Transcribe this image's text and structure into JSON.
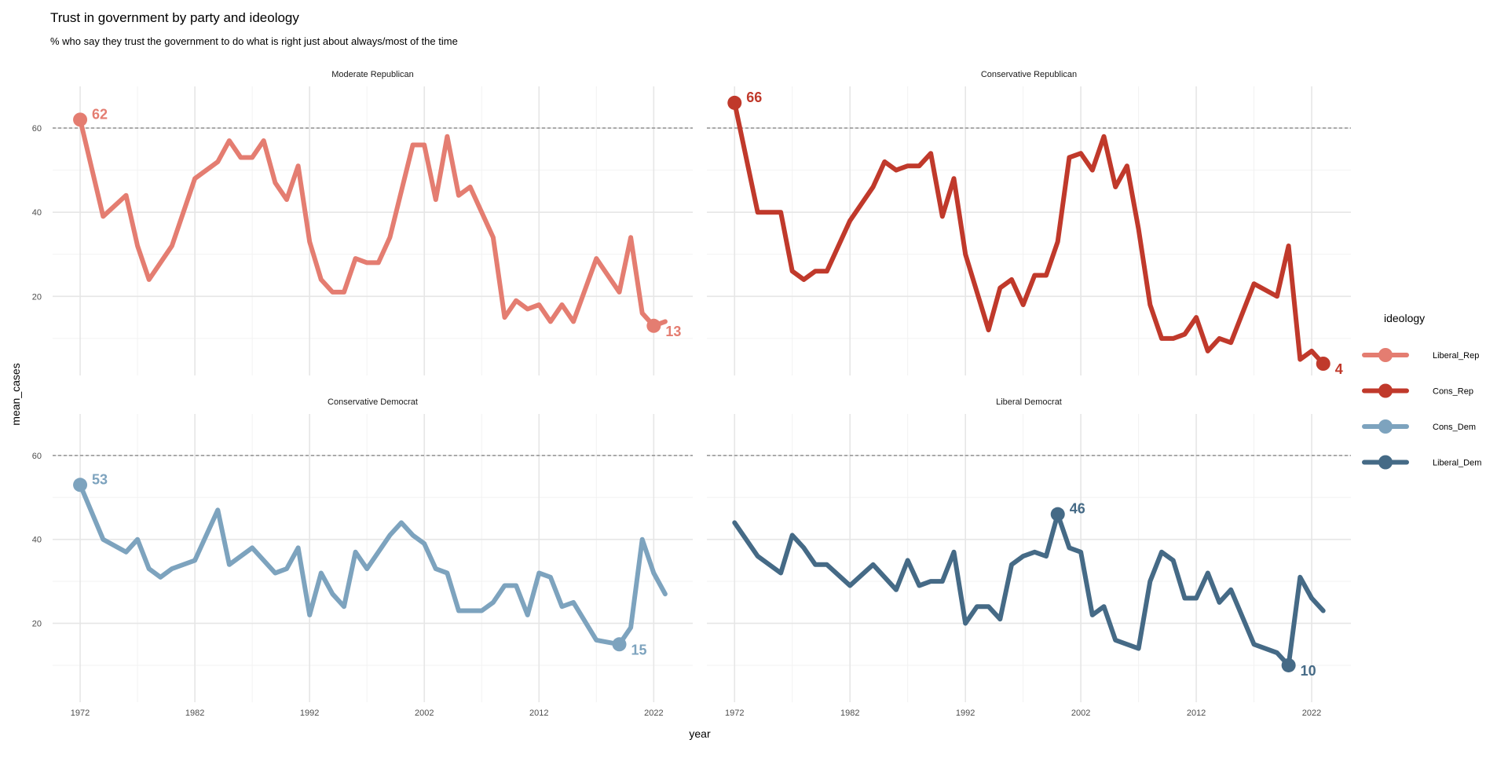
{
  "chart_data": {
    "type": "line",
    "title": "Trust in government by party and ideology",
    "subtitle": "% who say they trust the government to do what is right just about always/most of the time",
    "xlabel": "year",
    "ylabel": "mean_cases",
    "x_ticks": [
      1972,
      1982,
      1992,
      2002,
      2012,
      2022
    ],
    "y_ticks": [
      20,
      40,
      60
    ],
    "xlim": [
      1969.6,
      2025.4
    ],
    "ylim": [
      1.2,
      69.9
    ],
    "reference_line": 60,
    "grid": true,
    "legend": {
      "title": "ideology",
      "placement": "right",
      "entries": [
        {
          "key": "Liberal_Rep",
          "label": "Liberal_Rep",
          "color": "#E47D71"
        },
        {
          "key": "Cons_Rep",
          "label": "Cons_Rep",
          "color": "#C0392B"
        },
        {
          "key": "Cons_Dem",
          "label": "Cons_Dem",
          "color": "#7DA3BE"
        },
        {
          "key": "Liberal_Dem",
          "label": "Liberal_Dem",
          "color": "#456A86"
        }
      ]
    },
    "panels": [
      {
        "title": "Moderate Republican",
        "series": "Liberal_Rep",
        "x": [
          1972,
          1974,
          1976,
          1977,
          1978,
          1980,
          1982,
          1984,
          1985,
          1986,
          1987,
          1988,
          1989,
          1990,
          1991,
          1992,
          1993,
          1994,
          1995,
          1996,
          1997,
          1998,
          1999,
          2001,
          2002,
          2003,
          2004,
          2005,
          2006,
          2008,
          2009,
          2010,
          2011,
          2012,
          2013,
          2014,
          2015,
          2017,
          2019,
          2020,
          2021,
          2022,
          2023
        ],
        "y": [
          62,
          39,
          44,
          32,
          24,
          32,
          48,
          52,
          57,
          53,
          53,
          57,
          47,
          43,
          51,
          33,
          24,
          21,
          21,
          29,
          28,
          28,
          34,
          56,
          56,
          43,
          58,
          44,
          46,
          34,
          15,
          19,
          17,
          18,
          14,
          18,
          14,
          29,
          21,
          34,
          16,
          13,
          14
        ],
        "highlights": [
          {
            "x": 1972,
            "y": 62,
            "label": "62"
          },
          {
            "x": 2022,
            "y": 13,
            "label": "13"
          }
        ]
      },
      {
        "title": "Conservative Republican",
        "series": "Cons_Rep",
        "x": [
          1972,
          1974,
          1976,
          1977,
          1978,
          1979,
          1980,
          1982,
          1984,
          1985,
          1986,
          1987,
          1988,
          1989,
          1990,
          1991,
          1992,
          1993,
          1994,
          1995,
          1996,
          1997,
          1998,
          1999,
          2000,
          2001,
          2002,
          2003,
          2004,
          2005,
          2006,
          2007,
          2008,
          2009,
          2010,
          2011,
          2012,
          2013,
          2014,
          2015,
          2017,
          2019,
          2020,
          2021,
          2022,
          2023
        ],
        "y": [
          66,
          40,
          40,
          26,
          24,
          26,
          26,
          38,
          46,
          52,
          50,
          51,
          51,
          54,
          39,
          48,
          30,
          21,
          12,
          22,
          24,
          18,
          25,
          25,
          33,
          53,
          54,
          50,
          58,
          46,
          51,
          36,
          18,
          10,
          10,
          11,
          15,
          7,
          10,
          9,
          23,
          20,
          32,
          5,
          7,
          4
        ],
        "highlights": [
          {
            "x": 1972,
            "y": 66,
            "label": "66"
          },
          {
            "x": 2023,
            "y": 4,
            "label": "4"
          }
        ]
      },
      {
        "title": "Conservative Democrat",
        "series": "Cons_Dem",
        "x": [
          1972,
          1974,
          1976,
          1977,
          1978,
          1979,
          1980,
          1982,
          1984,
          1985,
          1987,
          1989,
          1990,
          1991,
          1992,
          1993,
          1994,
          1995,
          1996,
          1997,
          1999,
          2000,
          2001,
          2002,
          2003,
          2004,
          2005,
          2006,
          2007,
          2008,
          2009,
          2010,
          2011,
          2012,
          2013,
          2014,
          2015,
          2017,
          2019,
          2020,
          2021,
          2022,
          2023
        ],
        "y": [
          53,
          40,
          37,
          40,
          33,
          31,
          33,
          35,
          47,
          34,
          38,
          32,
          33,
          38,
          22,
          32,
          27,
          24,
          37,
          33,
          41,
          44,
          41,
          39,
          33,
          32,
          23,
          23,
          23,
          25,
          29,
          29,
          22,
          32,
          31,
          24,
          25,
          16,
          15,
          19,
          40,
          32,
          27
        ],
        "highlights": [
          {
            "x": 1972,
            "y": 53,
            "label": "53"
          },
          {
            "x": 2019,
            "y": 15,
            "label": "15"
          }
        ]
      },
      {
        "title": "Liberal Democrat",
        "series": "Liberal_Dem",
        "x": [
          1972,
          1974,
          1976,
          1977,
          1978,
          1979,
          1980,
          1982,
          1984,
          1985,
          1986,
          1987,
          1988,
          1989,
          1990,
          1991,
          1992,
          1993,
          1994,
          1995,
          1996,
          1997,
          1998,
          1999,
          2000,
          2001,
          2002,
          2003,
          2004,
          2005,
          2007,
          2008,
          2009,
          2010,
          2011,
          2012,
          2013,
          2014,
          2015,
          2017,
          2019,
          2020,
          2021,
          2022,
          2023
        ],
        "y": [
          44,
          36,
          32,
          41,
          38,
          34,
          34,
          29,
          34,
          31,
          28,
          35,
          29,
          30,
          30,
          37,
          20,
          24,
          24,
          21,
          34,
          36,
          37,
          36,
          46,
          38,
          37,
          22,
          24,
          16,
          14,
          30,
          37,
          35,
          26,
          26,
          32,
          25,
          28,
          15,
          13,
          10,
          31,
          26,
          23
        ],
        "highlights": [
          {
            "x": 2000,
            "y": 46,
            "label": "46"
          },
          {
            "x": 2020,
            "y": 10,
            "label": "10"
          }
        ]
      }
    ]
  }
}
